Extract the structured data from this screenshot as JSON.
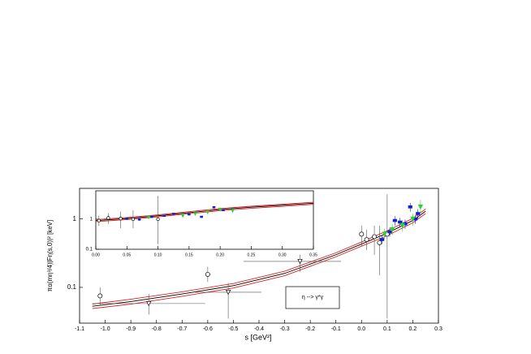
{
  "chart_data": [
    {
      "type": "scatter",
      "log_y": true,
      "x_label": "s [GeV²]",
      "y_label": "πα(mη³/4)|Fη(s,0)|² [keV]",
      "annotation": "η  -->  γ*γ",
      "xlim": [
        -1.1,
        0.3
      ],
      "ylim": [
        0.03,
        2.8
      ],
      "xticks": [
        -1.1,
        {
          "value": -1.0,
          "label": "-1.0"
        },
        -0.9,
        -0.8,
        -0.7,
        -0.6,
        -0.5,
        -0.4,
        -0.3,
        -0.2,
        -0.1,
        {
          "value": 0.0,
          "label": "0.0"
        },
        0.1,
        0.2,
        0.3
      ],
      "yticks": [
        0.1,
        1
      ],
      "series": [
        {
          "style": "line",
          "color": "#e02020",
          "x": [
            -1.05,
            -0.9,
            -0.7,
            -0.5,
            -0.3,
            -0.1,
            0,
            0.1,
            0.2,
            0.25
          ],
          "values": [
            0.057,
            0.067,
            0.086,
            0.114,
            0.172,
            0.32,
            0.46,
            0.67,
            1.02,
            1.4
          ]
        },
        {
          "style": "line",
          "color": "#e02020",
          "x": [
            -1.05,
            -0.9,
            -0.7,
            -0.5,
            -0.3,
            -0.1,
            0,
            0.1,
            0.2,
            0.25
          ],
          "values": [
            0.049,
            0.057,
            0.074,
            0.098,
            0.148,
            0.28,
            0.4,
            0.57,
            0.88,
            1.2
          ]
        },
        {
          "style": "line",
          "color": "#000000",
          "x": [
            -1.05,
            -0.9,
            -0.7,
            -0.5,
            -0.3,
            -0.1,
            0,
            0.1,
            0.2,
            0.25
          ],
          "values": [
            0.053,
            0.062,
            0.08,
            0.106,
            0.16,
            0.3,
            0.43,
            0.62,
            0.95,
            1.3
          ]
        },
        {
          "style": "points",
          "marker": "circle-open",
          "color": "#000000",
          "x": [
            -1.02,
            -0.6,
            0.0,
            0.02,
            0.05,
            0.07,
            0.1
          ],
          "values": [
            0.075,
            0.155,
            0.6,
            0.5,
            0.55,
            0.45,
            0.6
          ],
          "lower": [
            0.055,
            0.12,
            0.4,
            0.35,
            0.3,
            0.15,
            0.035
          ],
          "upper": [
            0.1,
            0.2,
            0.8,
            0.7,
            0.8,
            0.8,
            2.3
          ]
        },
        {
          "style": "points",
          "marker": "triangle-open",
          "color": "#000000",
          "x": [
            -0.83,
            -0.52,
            -0.24
          ],
          "values": [
            0.058,
            0.085,
            0.24
          ],
          "lower": [
            0.04,
            0.035,
            0.17
          ],
          "upper": [
            0.08,
            0.115,
            0.3
          ],
          "xlow": [
            -1.05,
            -0.65,
            -0.46
          ],
          "xhigh": [
            -0.61,
            -0.39,
            -0.08
          ]
        },
        {
          "style": "points",
          "marker": "square",
          "color": "#1020d0",
          "x": [
            0.08,
            0.11,
            0.13,
            0.15,
            0.17,
            0.19,
            0.21,
            0.22
          ],
          "values": [
            0.5,
            0.65,
            0.95,
            0.9,
            0.85,
            1.5,
            1.0,
            1.2
          ],
          "lower": [
            0.43,
            0.55,
            0.8,
            0.77,
            0.72,
            1.28,
            0.85,
            1.0
          ],
          "upper": [
            0.58,
            0.75,
            1.1,
            1.04,
            0.98,
            1.72,
            1.15,
            1.4
          ]
        },
        {
          "style": "points",
          "marker": "triangle",
          "color": "#30d030",
          "x": [
            0.09,
            0.12,
            0.16,
            0.2,
            0.23
          ],
          "values": [
            0.6,
            0.7,
            0.8,
            1.0,
            1.5
          ],
          "lower": [
            0.5,
            0.58,
            0.65,
            0.8,
            1.2
          ],
          "upper": [
            0.72,
            0.84,
            0.96,
            1.2,
            1.9
          ]
        }
      ]
    },
    {
      "type": "scatter",
      "log_y": true,
      "xlim": [
        0,
        0.35
      ],
      "ylim": [
        0.1,
        8.8
      ],
      "xticks": [
        {
          "value": 0.0,
          "label": "0.00"
        },
        0.05,
        {
          "value": 0.1,
          "label": "0.10"
        },
        0.15,
        {
          "value": 0.2,
          "label": "0.20"
        },
        0.25,
        {
          "value": 0.3,
          "label": "0.30"
        },
        0.35
      ],
      "yticks": [
        0.1,
        1
      ],
      "series": [
        {
          "style": "line",
          "color": "#e02020",
          "x": [
            0,
            0.05,
            0.1,
            0.15,
            0.2,
            0.25,
            0.3,
            0.35
          ],
          "values": [
            0.97,
            1.13,
            1.4,
            1.78,
            2.27,
            2.7,
            3.13,
            3.67
          ]
        },
        {
          "style": "line",
          "color": "#e02020",
          "x": [
            0,
            0.05,
            0.1,
            0.15,
            0.2,
            0.25,
            0.3,
            0.35
          ],
          "values": [
            0.83,
            0.97,
            1.2,
            1.52,
            1.93,
            2.3,
            2.67,
            3.13
          ]
        },
        {
          "style": "line",
          "color": "#000000",
          "x": [
            0,
            0.05,
            0.1,
            0.15,
            0.2,
            0.25,
            0.3,
            0.35
          ],
          "values": [
            0.9,
            1.05,
            1.3,
            1.65,
            2.1,
            2.5,
            2.9,
            3.4
          ]
        },
        {
          "style": "points",
          "marker": "circle-open",
          "color": "#000000",
          "x": [
            0.005,
            0.02,
            0.04,
            0.06,
            0.1
          ],
          "values": [
            0.9,
            1.1,
            1.05,
            1.0,
            1.0
          ],
          "lower": [
            0.6,
            0.7,
            0.5,
            0.5,
            0.15
          ],
          "upper": [
            1.3,
            1.6,
            1.8,
            2.0,
            6.0
          ]
        },
        {
          "style": "points",
          "marker": "square",
          "color": "#1020d0",
          "x": [
            0.05,
            0.07,
            0.09,
            0.11,
            0.125,
            0.15,
            0.17,
            0.19,
            0.205
          ],
          "values": [
            1.05,
            0.98,
            1.2,
            1.3,
            1.5,
            1.45,
            1.2,
            2.5,
            2.0
          ],
          "lower": [
            0.95,
            0.88,
            1.1,
            1.2,
            1.38,
            1.33,
            1.1,
            2.3,
            1.84
          ],
          "upper": [
            1.15,
            1.08,
            1.3,
            1.4,
            1.62,
            1.57,
            1.3,
            2.7,
            2.16
          ]
        },
        {
          "style": "points",
          "marker": "triangle",
          "color": "#30d030",
          "x": [
            0.085,
            0.14,
            0.16,
            0.18,
            0.2,
            0.22
          ],
          "values": [
            1.15,
            1.3,
            1.5,
            1.7,
            2.1,
            1.9
          ],
          "lower": [
            1.05,
            1.18,
            1.36,
            1.55,
            1.9,
            1.72
          ],
          "upper": [
            1.27,
            1.42,
            1.64,
            1.85,
            2.3,
            2.08
          ]
        }
      ]
    }
  ]
}
